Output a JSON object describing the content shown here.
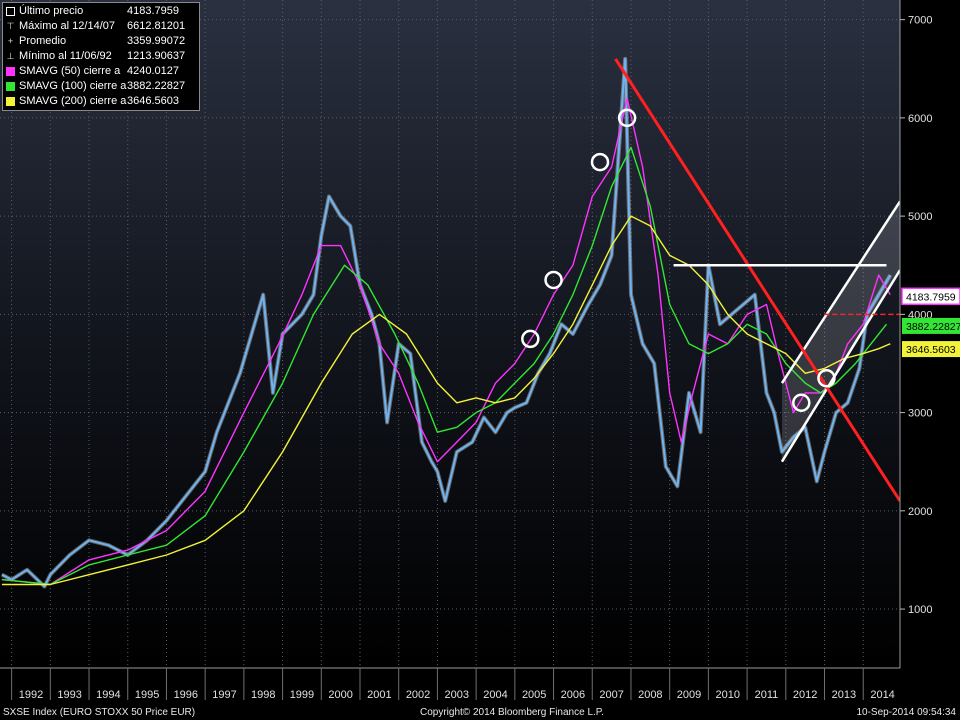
{
  "legend": {
    "rows": [
      {
        "label": "Último precio",
        "value": "4183.7959",
        "marker": "square-outline",
        "color": "#ffffff"
      },
      {
        "label": "Máximo al 12/14/07",
        "value": "6612.81201",
        "marker": "up-tick",
        "color": "#ffffff"
      },
      {
        "label": "Promedio",
        "value": "3359.99072",
        "marker": "plus-line",
        "color": "#ffffff"
      },
      {
        "label": "Mínimo al 11/06/92",
        "value": "1213.90637",
        "marker": "down-tick",
        "color": "#ffffff"
      },
      {
        "label": "SMAVG (50) cierre a",
        "value": "4240.0127",
        "marker": "square",
        "color": "#ff33ff"
      },
      {
        "label": "SMAVG (100) cierre a",
        "value": "3882.22827",
        "marker": "square",
        "color": "#33e633"
      },
      {
        "label": "SMAVG (200) cierre a",
        "value": "3646.5603",
        "marker": "square",
        "color": "#f2f23a"
      }
    ]
  },
  "footer": {
    "left": "SXSE Index (EURO STOXX 50 Price EUR)",
    "center": "Copyright© 2014 Bloomberg Finance L.P.",
    "right": "10-Sep-2014 09:54:34"
  },
  "chart_data": {
    "type": "line",
    "x_tick_labels": [
      "1992",
      "1993",
      "1994",
      "1995",
      "1996",
      "1997",
      "1998",
      "1999",
      "2000",
      "2001",
      "2002",
      "2003",
      "2004",
      "2005",
      "2006",
      "2007",
      "2008",
      "2009",
      "2010",
      "2011",
      "2012",
      "2013",
      "2014"
    ],
    "y_ticks": [
      1000,
      2000,
      3000,
      4000,
      5000,
      6000,
      7000
    ],
    "ylim": [
      400,
      7200
    ],
    "xlim": [
      1991.7,
      2014.95
    ],
    "y_axis_side": "right",
    "grid": true,
    "legend_position": "top-left",
    "background": "#000000",
    "series": [
      {
        "name": "",
        "color": "#6fb4f0",
        "role": "price",
        "x": [
          1991.75,
          1992.0,
          1992.4,
          1992.85,
          1993.0,
          1993.5,
          1994.0,
          1994.5,
          1995.0,
          1995.5,
          1996.0,
          1996.5,
          1997.0,
          1997.3,
          1997.6,
          1997.9,
          1998.2,
          1998.5,
          1998.75,
          1999.0,
          1999.5,
          1999.8,
          2000.0,
          2000.2,
          2000.5,
          2000.75,
          2001.0,
          2001.3,
          2001.5,
          2001.7,
          2002.0,
          2002.3,
          2002.6,
          2002.85,
          2003.0,
          2003.2,
          2003.5,
          2003.9,
          2004.2,
          2004.5,
          2004.8,
          2005.0,
          2005.3,
          2005.6,
          2005.9,
          2006.2,
          2006.5,
          2006.9,
          2007.2,
          2007.5,
          2007.85,
          2008.0,
          2008.3,
          2008.6,
          2008.9,
          2009.2,
          2009.5,
          2009.8,
          2010.0,
          2010.3,
          2010.6,
          2010.9,
          2011.2,
          2011.5,
          2011.7,
          2011.9,
          2012.2,
          2012.5,
          2012.8,
          2013.0,
          2013.3,
          2013.6,
          2013.9,
          2014.1,
          2014.4,
          2014.7
        ],
        "y": [
          1350,
          1300,
          1400,
          1230,
          1350,
          1550,
          1700,
          1650,
          1550,
          1700,
          1900,
          2150,
          2400,
          2800,
          3100,
          3400,
          3800,
          4200,
          3200,
          3800,
          4000,
          4200,
          4800,
          5200,
          5000,
          4900,
          4300,
          4000,
          3700,
          2900,
          3700,
          3600,
          2700,
          2500,
          2400,
          2100,
          2600,
          2700,
          2950,
          2800,
          3000,
          3050,
          3100,
          3400,
          3600,
          3900,
          3800,
          4100,
          4300,
          4600,
          6600,
          4200,
          3700,
          3500,
          2450,
          2250,
          3200,
          2800,
          4500,
          3900,
          4000,
          4100,
          4200,
          3200,
          3000,
          2600,
          2750,
          2850,
          2300,
          2600,
          3000,
          3100,
          3450,
          4000,
          4200,
          4400
        ]
      },
      {
        "name": "SMAVG (50)",
        "color": "#ff33ff",
        "x": [
          1991.75,
          1993.0,
          1994.0,
          1995.0,
          1996.0,
          1997.0,
          1998.0,
          1998.9,
          1999.5,
          2000.0,
          2000.5,
          2001.0,
          2001.5,
          2002.0,
          2002.5,
          2003.0,
          2003.5,
          2004.0,
          2004.5,
          2005.0,
          2005.5,
          2006.0,
          2006.5,
          2007.0,
          2007.5,
          2007.9,
          2008.3,
          2008.7,
          2009.0,
          2009.3,
          2009.6,
          2010.0,
          2010.5,
          2011.0,
          2011.5,
          2011.8,
          2012.2,
          2012.5,
          2012.9,
          2013.2,
          2013.6,
          2014.0,
          2014.4,
          2014.7
        ],
        "y": [
          1300,
          1250,
          1500,
          1600,
          1800,
          2200,
          3000,
          3700,
          4200,
          4700,
          4700,
          4300,
          3700,
          3400,
          2900,
          2500,
          2700,
          2900,
          3300,
          3500,
          3800,
          4200,
          4500,
          5200,
          5500,
          6200,
          5500,
          4400,
          3200,
          2700,
          3200,
          3800,
          3700,
          4000,
          4100,
          3600,
          3000,
          3200,
          3200,
          3300,
          3700,
          3900,
          4400,
          4200
        ]
      },
      {
        "name": "SMAVG (100)",
        "color": "#33e633",
        "x": [
          1991.75,
          1993.0,
          1994.0,
          1995.0,
          1996.0,
          1997.0,
          1998.0,
          1999.0,
          1999.8,
          2000.6,
          2001.2,
          2001.9,
          2002.5,
          2003.0,
          2003.5,
          2004.0,
          2004.5,
          2005.0,
          2005.5,
          2006.0,
          2006.5,
          2007.0,
          2007.5,
          2008.0,
          2008.5,
          2009.0,
          2009.5,
          2010.0,
          2010.5,
          2011.0,
          2011.5,
          2012.0,
          2012.5,
          2012.9,
          2013.3,
          2013.8,
          2014.2,
          2014.6
        ],
        "y": [
          1300,
          1250,
          1450,
          1550,
          1650,
          1950,
          2600,
          3300,
          4000,
          4500,
          4300,
          3800,
          3300,
          2800,
          2850,
          3000,
          3100,
          3300,
          3500,
          3800,
          4200,
          4700,
          5300,
          5700,
          5100,
          4100,
          3700,
          3600,
          3700,
          3900,
          3800,
          3500,
          3300,
          3200,
          3300,
          3500,
          3700,
          3900
        ]
      },
      {
        "name": "SMAVG (200)",
        "color": "#f2f23a",
        "x": [
          1991.75,
          1993.0,
          1994.0,
          1995.0,
          1996.0,
          1997.0,
          1998.0,
          1999.0,
          2000.0,
          2000.8,
          2001.5,
          2002.2,
          2003.0,
          2003.5,
          2004.0,
          2004.5,
          2005.0,
          2005.5,
          2006.0,
          2006.5,
          2007.0,
          2007.5,
          2008.0,
          2008.5,
          2009.0,
          2009.5,
          2010.0,
          2010.5,
          2011.0,
          2011.5,
          2012.0,
          2012.5,
          2013.0,
          2013.5,
          2014.0,
          2014.4,
          2014.7
        ],
        "y": [
          1250,
          1250,
          1350,
          1450,
          1550,
          1700,
          2000,
          2600,
          3300,
          3800,
          4000,
          3800,
          3300,
          3100,
          3150,
          3100,
          3150,
          3350,
          3600,
          3900,
          4300,
          4700,
          5000,
          4900,
          4600,
          4500,
          4300,
          4000,
          3800,
          3700,
          3600,
          3400,
          3450,
          3550,
          3600,
          3650,
          3700
        ]
      }
    ],
    "annotations": [
      {
        "type": "trendline",
        "color": "#ff2020",
        "points": [
          [
            2007.6,
            6600
          ],
          [
            2014.95,
            2100
          ]
        ]
      },
      {
        "type": "trendline",
        "color": "#ff2020",
        "style": "dashed",
        "points": [
          [
            2013.0,
            4000
          ],
          [
            2014.95,
            4000
          ]
        ]
      },
      {
        "type": "hline",
        "color": "#ffffff",
        "points": [
          [
            2009.1,
            4500
          ],
          [
            2014.6,
            4500
          ]
        ]
      },
      {
        "type": "channel",
        "color": "#ffffff",
        "lower": [
          [
            2011.9,
            2500
          ],
          [
            2014.95,
            4450
          ]
        ],
        "upper": [
          [
            2011.9,
            3300
          ],
          [
            2014.95,
            5150
          ]
        ]
      },
      {
        "type": "circle",
        "x": 2005.4,
        "y": 3750
      },
      {
        "type": "circle",
        "x": 2006.0,
        "y": 4350
      },
      {
        "type": "circle",
        "x": 2007.2,
        "y": 5550
      },
      {
        "type": "circle",
        "x": 2007.9,
        "y": 6000
      },
      {
        "type": "circle",
        "x": 2012.4,
        "y": 3100
      },
      {
        "type": "circle",
        "x": 2013.05,
        "y": 3350
      }
    ],
    "price_labels": [
      {
        "text": "4183.7959",
        "y": 4183.7959,
        "bg": "#ffffff",
        "fg": "#000000",
        "border": "#ff33ff"
      },
      {
        "text": "3882.22827",
        "y": 3882.22827,
        "bg": "#33e633",
        "fg": "#000000"
      },
      {
        "text": "3646.5603",
        "y": 3646.5603,
        "bg": "#f2f23a",
        "fg": "#000000"
      }
    ]
  }
}
